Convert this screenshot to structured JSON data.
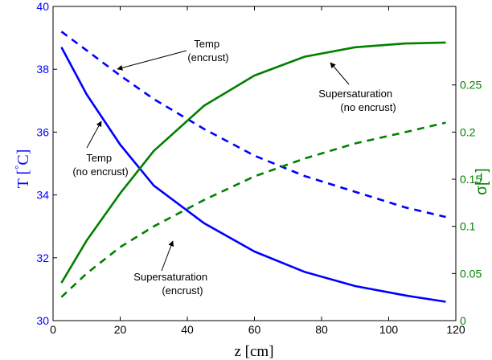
{
  "chart_data": {
    "type": "line",
    "xlabel": "z [cm]",
    "ylabel_left": "T [°C]",
    "ylabel_left_parts": {
      "main": "T ",
      "degree": "°",
      "unit": "C]",
      "bracket": "["
    },
    "ylabel_right": "σ[−]",
    "xlim": [
      0,
      120
    ],
    "ylim_left": [
      30,
      40
    ],
    "ylim_right": [
      0,
      0.3333
    ],
    "x_ticks": [
      "0",
      "20",
      "40",
      "60",
      "80",
      "100",
      "120"
    ],
    "y_left_ticks": [
      "30",
      "32",
      "34",
      "36",
      "38",
      "40"
    ],
    "y_right_ticks": [
      "0",
      "0.05",
      "0.1",
      "0.15",
      "0.2",
      "0.25"
    ],
    "grid": false,
    "colors": {
      "temp": "#0000ff",
      "supersat": "#008000",
      "axis": "#000000"
    },
    "series": [
      {
        "axis": "left",
        "color": "#0000ff",
        "style": "solid",
        "x": [
          2.5,
          10,
          20,
          30,
          45,
          60,
          75,
          90,
          105,
          117
        ],
        "y": [
          38.7,
          37.2,
          35.6,
          34.3,
          33.1,
          32.2,
          31.55,
          31.1,
          30.8,
          30.6
        ]
      },
      {
        "axis": "left",
        "color": "#0000ff",
        "style": "dashed",
        "x": [
          2.5,
          10,
          20,
          30,
          45,
          60,
          75,
          90,
          105,
          117
        ],
        "y": [
          39.2,
          38.6,
          37.8,
          37.05,
          36.1,
          35.25,
          34.6,
          34.1,
          33.6,
          33.3
        ]
      },
      {
        "axis": "right",
        "color": "#008000",
        "style": "solid",
        "x": [
          2.5,
          10,
          20,
          30,
          45,
          60,
          75,
          90,
          105,
          117
        ],
        "y": [
          0.04,
          0.085,
          0.135,
          0.18,
          0.228,
          0.26,
          0.28,
          0.29,
          0.294,
          0.295
        ]
      },
      {
        "axis": "right",
        "color": "#008000",
        "style": "dashed",
        "x": [
          2.5,
          10,
          20,
          30,
          45,
          60,
          75,
          90,
          105,
          117
        ],
        "y": [
          0.025,
          0.05,
          0.078,
          0.1,
          0.128,
          0.153,
          0.172,
          0.188,
          0.2,
          0.21
        ]
      }
    ],
    "annotations": [
      {
        "lines": [
          "Temp",
          "(encrust)"
        ]
      },
      {
        "lines": [
          "Temp",
          "(no encrust)"
        ]
      },
      {
        "lines": [
          "Supersaturation",
          "(no encrust)"
        ]
      },
      {
        "lines": [
          "Supersaturation",
          "(encrust)"
        ]
      }
    ]
  }
}
